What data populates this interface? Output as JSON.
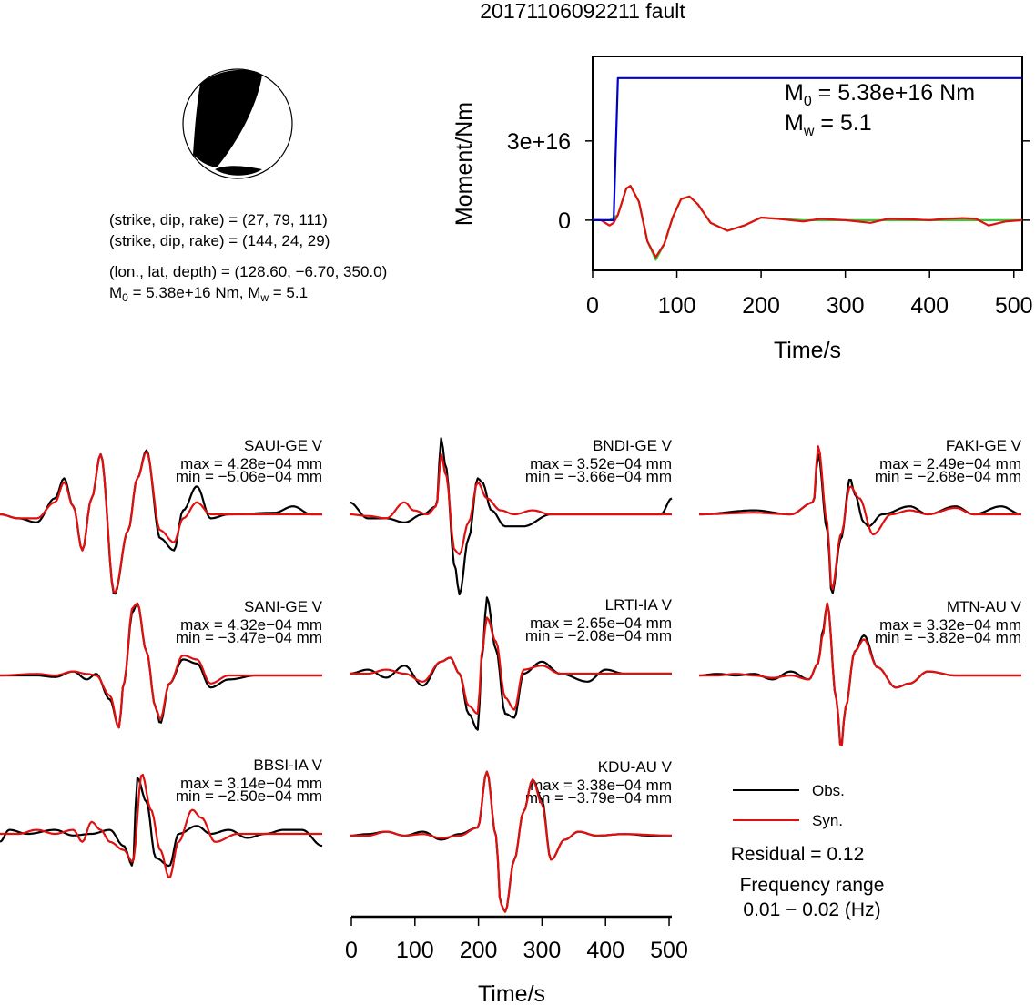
{
  "title": "20171106092211 fault",
  "focal": {
    "plane1": "(strike, dip, rake) = (27, 79, 111)",
    "plane2": "(strike, dip, rake) = (144, 24, 29)",
    "location": "(lon., lat, depth) = (128.60, −6.70, 350.0)",
    "m0_prefix": "M",
    "m0_sub": "0",
    "m0_value": " = 5.38e+16 Nm, M",
    "mw_sub": "w",
    "mw_value": " = 5.1"
  },
  "moment_panel": {
    "ylabel": "Moment/Nm",
    "xlabel": "Time/s",
    "annot_m0_prefix": "M",
    "annot_m0_sub": "0",
    "annot_m0_value": " = 5.38e+16 Nm",
    "annot_mw_prefix": "M",
    "annot_mw_sub": "w",
    "annot_mw_value": " = 5.1"
  },
  "waveforms_axis": {
    "xlabel": "Time/s"
  },
  "legend": {
    "obs": "Obs.",
    "syn": "Syn.",
    "residual": "Residual = 0.12",
    "freq_label": "Frequency range",
    "freq_value": "0.01 − 0.02 (Hz)"
  },
  "colors": {
    "obs": "#000000",
    "syn": "#e01010",
    "moment": "#0000cc",
    "synth_green": "#33cc33"
  },
  "chart_data": [
    {
      "type": "line",
      "title": "",
      "xlabel": "Time/s",
      "ylabel": "Moment/Nm",
      "xlim": [
        0,
        510
      ],
      "ylim": [
        -1.9e+16,
        6.2e+16
      ],
      "xticks": [
        "0",
        "100",
        "200",
        "300",
        "400",
        "500"
      ],
      "yticks": [
        "0",
        "3e+16"
      ],
      "series": [
        {
          "color": "#0000cc",
          "x": [
            0,
            25,
            30,
            40,
            510
          ],
          "y": [
            0,
            0,
            5.38e+16,
            5.38e+16,
            5.38e+16
          ]
        },
        {
          "color": "#33cc33",
          "x": [
            0,
            20,
            30,
            40,
            45,
            55,
            65,
            75,
            85,
            95,
            105,
            115,
            125,
            140,
            160,
            180,
            200,
            220,
            250,
            300,
            350,
            400,
            450,
            500,
            510
          ],
          "y": [
            0,
            0,
            2000000000000000.0,
            1.2e+16,
            1.3e+16,
            7000000000000000.0,
            -8000000000000000.0,
            -1.5e+16,
            -9000000000000000.0,
            1000000000000000.0,
            8000000000000000.0,
            9000000000000000.0,
            6000000000000000.0,
            -1000000000000000.0,
            -4000000000000000.0,
            -2000000000000000.0,
            1000000000000000.0,
            500000000000000.0,
            0,
            0,
            0,
            0,
            0,
            0,
            0
          ]
        },
        {
          "color": "#e01010",
          "x": [
            0,
            10,
            20,
            25,
            30,
            40,
            45,
            55,
            65,
            75,
            85,
            95,
            105,
            115,
            125,
            140,
            160,
            180,
            200,
            220,
            250,
            270,
            300,
            330,
            350,
            380,
            400,
            420,
            440,
            455,
            470,
            490,
            510
          ],
          "y": [
            0,
            0,
            -2000000000000000.0,
            -1000000000000000.0,
            2000000000000000.0,
            1.2e+16,
            1.3e+16,
            7000000000000000.0,
            -8000000000000000.0,
            -1.4e+16,
            -9000000000000000.0,
            1000000000000000.0,
            8000000000000000.0,
            9000000000000000.0,
            6000000000000000.0,
            -1000000000000000.0,
            -4000000000000000.0,
            -2000000000000000.0,
            1000000000000000.0,
            500000000000000.0,
            -500000000000000.0,
            500000000000000.0,
            0,
            -1000000000000000.0,
            500000000000000.0,
            300000000000000.0,
            0,
            500000000000000.0,
            800000000000000.0,
            500000000000000.0,
            -2000000000000000.0,
            -500000000000000.0,
            0
          ]
        }
      ]
    },
    {
      "type": "line",
      "xlabel": "Time/s",
      "xlim": [
        0,
        510
      ],
      "xticks": [
        "0",
        "100",
        "200",
        "300",
        "400",
        "500"
      ],
      "stations": [
        {
          "name": "SAUI-GE V",
          "max": "max = 4.28e−04 mm",
          "min": "min = −5.06e−04 mm"
        },
        {
          "name": "BNDI-GE V",
          "max": "max = 3.52e−04 mm",
          "min": "min = −3.66e−04 mm"
        },
        {
          "name": "FAKI-GE V",
          "max": "max = 2.49e−04 mm",
          "min": "min = −2.68e−04 mm"
        },
        {
          "name": "SANI-GE V",
          "max": "max = 4.32e−04 mm",
          "min": "min = −3.47e−04 mm"
        },
        {
          "name": "LRTI-IA V",
          "max": "max = 2.65e−04 mm",
          "min": "min = −2.08e−04 mm"
        },
        {
          "name": "MTN-AU V",
          "max": "max = 3.32e−04 mm",
          "min": "min = −3.82e−04 mm"
        },
        {
          "name": "BBSI-IA V",
          "max": "max = 3.14e−04 mm",
          "min": "min = −2.50e−04 mm"
        },
        {
          "name": "KDU-AU V",
          "max": "max = 3.38e−04 mm",
          "min": "min = −3.79e−04 mm"
        }
      ]
    }
  ]
}
